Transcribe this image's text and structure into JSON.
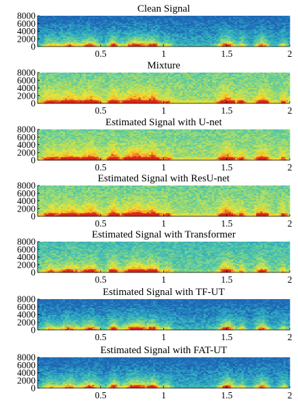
{
  "figure": {
    "background": "#ffffff",
    "colormap": [
      "#1f66b6",
      "#2aa6c4",
      "#52c7a8",
      "#a8dd6a",
      "#f0e52d",
      "#f7a12a",
      "#d9261b"
    ]
  },
  "chart_data": [
    {
      "type": "heatmap",
      "title": "Clean Signal",
      "xlim": [
        0,
        2
      ],
      "ylim": [
        0,
        8000
      ],
      "xticks": [
        0.5,
        1,
        1.5,
        2
      ],
      "xtick_labels": [
        "0.5",
        "1",
        "1.5",
        "2"
      ],
      "yticks": [
        0,
        2000,
        4000,
        6000,
        8000
      ],
      "ytick_labels": [
        "0",
        "2000",
        "4000",
        "6000",
        "8000"
      ],
      "noise_floor": "low"
    },
    {
      "type": "heatmap",
      "title": "Mixture",
      "xlim": [
        0,
        2
      ],
      "ylim": [
        0,
        8000
      ],
      "xticks": [
        0.5,
        1,
        1.5,
        2
      ],
      "xtick_labels": [
        "0.5",
        "1",
        "1.5",
        "2"
      ],
      "yticks": [
        0,
        2000,
        4000,
        6000,
        8000
      ],
      "ytick_labels": [
        "0",
        "2000",
        "4000",
        "6000",
        "8000"
      ],
      "noise_floor": "high"
    },
    {
      "type": "heatmap",
      "title": "Estimated Signal with U-net",
      "xlim": [
        0,
        2
      ],
      "ylim": [
        0,
        8000
      ],
      "xticks": [
        0.5,
        1,
        1.5,
        2
      ],
      "xtick_labels": [
        "0.5",
        "1",
        "1.5",
        "2"
      ],
      "yticks": [
        0,
        2000,
        4000,
        6000,
        8000
      ],
      "ytick_labels": [
        "0",
        "2000",
        "4000",
        "6000",
        "8000"
      ],
      "noise_floor": "high"
    },
    {
      "type": "heatmap",
      "title": "Estimated Signal with ResU-net",
      "xlim": [
        0,
        2
      ],
      "ylim": [
        0,
        8000
      ],
      "xticks": [
        0.5,
        1,
        1.5,
        2
      ],
      "xtick_labels": [
        "0.5",
        "1",
        "1.5",
        "2"
      ],
      "yticks": [
        0,
        2000,
        4000,
        6000,
        8000
      ],
      "ytick_labels": [
        "0",
        "2000",
        "4000",
        "6000",
        "8000"
      ],
      "noise_floor": "high"
    },
    {
      "type": "heatmap",
      "title": "Estimated Signal with Transformer",
      "xlim": [
        0,
        2
      ],
      "ylim": [
        0,
        8000
      ],
      "xticks": [
        0.5,
        1,
        1.5,
        2
      ],
      "xtick_labels": [
        "0.5",
        "1",
        "1.5",
        "2"
      ],
      "yticks": [
        0,
        2000,
        4000,
        6000,
        8000
      ],
      "ytick_labels": [
        "0",
        "2000",
        "4000",
        "6000",
        "8000"
      ],
      "noise_floor": "medium"
    },
    {
      "type": "heatmap",
      "title": "Estimated Signal with TF-UT",
      "xlim": [
        0,
        2
      ],
      "ylim": [
        0,
        8000
      ],
      "xticks": [
        0.5,
        1,
        1.5,
        2
      ],
      "xtick_labels": [
        "0.5",
        "1",
        "1.5",
        "2"
      ],
      "yticks": [
        0,
        2000,
        4000,
        6000,
        8000
      ],
      "ytick_labels": [
        "0",
        "2000",
        "4000",
        "6000",
        "8000"
      ],
      "noise_floor": "low"
    },
    {
      "type": "heatmap",
      "title": "Estimated Signal with FAT-UT",
      "xlim": [
        0,
        2
      ],
      "ylim": [
        0,
        8000
      ],
      "xticks": [
        0.5,
        1,
        1.5,
        2
      ],
      "xtick_labels": [
        "0.5",
        "1",
        "1.5",
        "2"
      ],
      "yticks": [
        0,
        2000,
        4000,
        6000,
        8000
      ],
      "ytick_labels": [
        "0",
        "2000",
        "4000",
        "6000",
        "8000"
      ],
      "noise_floor": "low"
    }
  ]
}
